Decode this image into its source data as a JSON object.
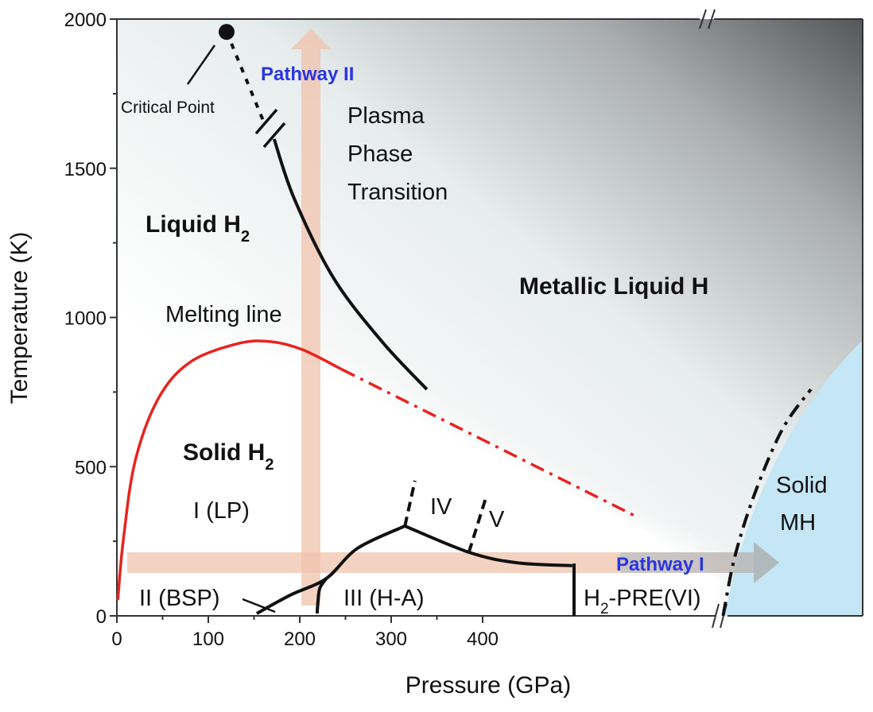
{
  "chart_data": {
    "type": "line",
    "title": "",
    "xlabel": "Pressure (GPa)",
    "ylabel": "Temperature (K)",
    "xlim": [
      0,
      820
    ],
    "ylim": [
      0,
      2000
    ],
    "x_ticks": [
      "0",
      "100",
      "200",
      "300",
      "400"
    ],
    "x_tick_values": [
      0,
      100,
      200,
      300,
      400
    ],
    "y_ticks": [
      "0",
      "500",
      "1000",
      "1500",
      "2000"
    ],
    "y_tick_values": [
      0,
      500,
      1000,
      1500,
      2000
    ],
    "axis_break": "between 400 GPa and the Solid MH region",
    "series": [
      {
        "name": "Melting line",
        "style": "solid",
        "color": "#e8231f",
        "points": [
          [
            1,
            53
          ],
          [
            7,
            253
          ],
          [
            20,
            519
          ],
          [
            46,
            732
          ],
          [
            81,
            852
          ],
          [
            133,
            913
          ],
          [
            168,
            919
          ],
          [
            203,
            892
          ],
          [
            246,
            826
          ]
        ]
      },
      {
        "name": "Melting line (extrapolated)",
        "style": "dash-dot",
        "color": "#e8231f",
        "points": [
          [
            246,
            826
          ],
          [
            568,
            333
          ]
        ]
      },
      {
        "name": "Plasma phase transition (to critical point)",
        "style": "dotted",
        "color": "#111111",
        "points": [
          [
            120,
            1957
          ],
          [
            160,
            1660
          ]
        ]
      },
      {
        "name": "Plasma phase transition",
        "style": "solid",
        "color": "#111111",
        "points": [
          [
            172,
            1598
          ],
          [
            194,
            1398
          ],
          [
            237,
            1132
          ],
          [
            290,
            919
          ],
          [
            339,
            759
          ]
        ]
      },
      {
        "name": "I-II/III boundary",
        "style": "solid",
        "color": "#111111",
        "points": [
          [
            153,
            8
          ],
          [
            190,
            70
          ],
          [
            229,
            125
          ],
          [
            263,
            226
          ],
          [
            315,
            301
          ]
        ]
      },
      {
        "name": "II-III boundary",
        "style": "solid",
        "color": "#111111",
        "points": [
          [
            219,
            8
          ],
          [
            220,
            50
          ],
          [
            222,
            93
          ],
          [
            229,
            125
          ]
        ]
      },
      {
        "name": "III-IV/V boundary",
        "style": "solid",
        "color": "#111111",
        "points": [
          [
            315,
            301
          ],
          [
            385,
            213
          ],
          [
            437,
            178
          ],
          [
            498,
            168
          ]
        ]
      },
      {
        "name": "I-IV boundary",
        "style": "dashed",
        "color": "#111111",
        "points": [
          [
            315,
            301
          ],
          [
            326,
            453
          ]
        ]
      },
      {
        "name": "IV-V boundary",
        "style": "dashed",
        "color": "#111111",
        "points": [
          [
            385,
            213
          ],
          [
            404,
            400
          ]
        ]
      },
      {
        "name": "III-H2-PRE boundary",
        "style": "solid",
        "color": "#111111",
        "points": [
          [
            500,
            175
          ],
          [
            500,
            0
          ]
        ]
      },
      {
        "name": "Solid MH boundary",
        "style": "dash-dot",
        "color": "#111111",
        "points": [
          [
            663,
            0
          ],
          [
            676,
            200
          ],
          [
            698,
            413
          ],
          [
            728,
            626
          ],
          [
            759,
            759
          ]
        ]
      }
    ],
    "critical_point": {
      "label": "Critical Point",
      "p": 120,
      "T": 1957
    },
    "annotations": {
      "pathway_2": "Pathway II",
      "pathway_1": "Pathway I",
      "plasma_1": "Plasma",
      "plasma_2": "Phase",
      "plasma_3": "Transition",
      "liquid_h2": "Liquid H",
      "liquid_h2_sub": "2",
      "solid_h2": "Solid H",
      "solid_h2_sub": "2",
      "melting_line": "Melting line",
      "metallic_liquid": "Metallic Liquid H",
      "phase_1": "I (LP)",
      "phase_2": "II (BSP)",
      "phase_3": "III (H-A)",
      "phase_4": "IV",
      "phase_5": "V",
      "phase_6_a": "H",
      "phase_6_sub": "2",
      "phase_6_b": "-PRE(VI)",
      "solid_mh_1": "Solid",
      "solid_mh_2": "MH"
    },
    "colors": {
      "melting": "#e8231f",
      "pathway_label": "#2a35e0",
      "pathway_arrow": "#f0c3ad",
      "solid_mh": "#c4e6f5"
    }
  }
}
